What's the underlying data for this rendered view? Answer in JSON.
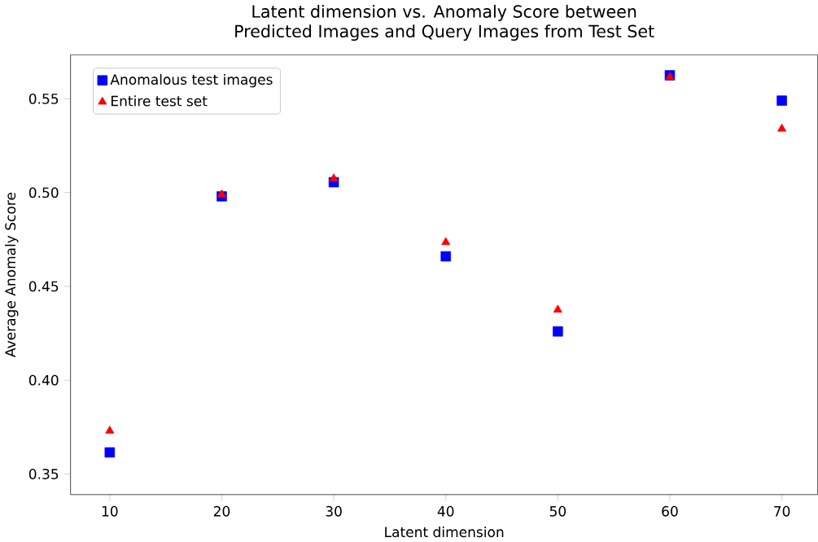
{
  "chart_data": {
    "type": "scatter",
    "title": "Latent dimension vs. Anomaly Score between\nPredicted Images and Query Images from Test Set",
    "xlabel": "Latent dimension",
    "ylabel": "Average Anomaly Score",
    "x": [
      10,
      20,
      30,
      40,
      50,
      60,
      70
    ],
    "series": [
      {
        "name": "Anomalous test images",
        "color": "#0000ff",
        "marker": "square",
        "values": [
          0.3615,
          0.498,
          0.5055,
          0.466,
          0.426,
          0.5625,
          0.549
        ]
      },
      {
        "name": "Entire test set",
        "color": "#ff0000",
        "marker": "triangle",
        "values": [
          0.373,
          0.499,
          0.5075,
          0.4735,
          0.4375,
          0.5615,
          0.534
        ]
      }
    ],
    "xlim": [
      6.5,
      73.2
    ],
    "ylim": [
      0.339,
      0.5735
    ],
    "xticks": [
      10,
      20,
      30,
      40,
      50,
      60,
      70
    ],
    "yticks": [
      {
        "value": 0.35,
        "label": "0.35"
      },
      {
        "value": 0.4,
        "label": "0.40"
      },
      {
        "value": 0.45,
        "label": "0.45"
      },
      {
        "value": 0.5,
        "label": "0.50"
      },
      {
        "value": 0.55,
        "label": "0.55"
      }
    ],
    "legend": "top left",
    "grid": false
  }
}
